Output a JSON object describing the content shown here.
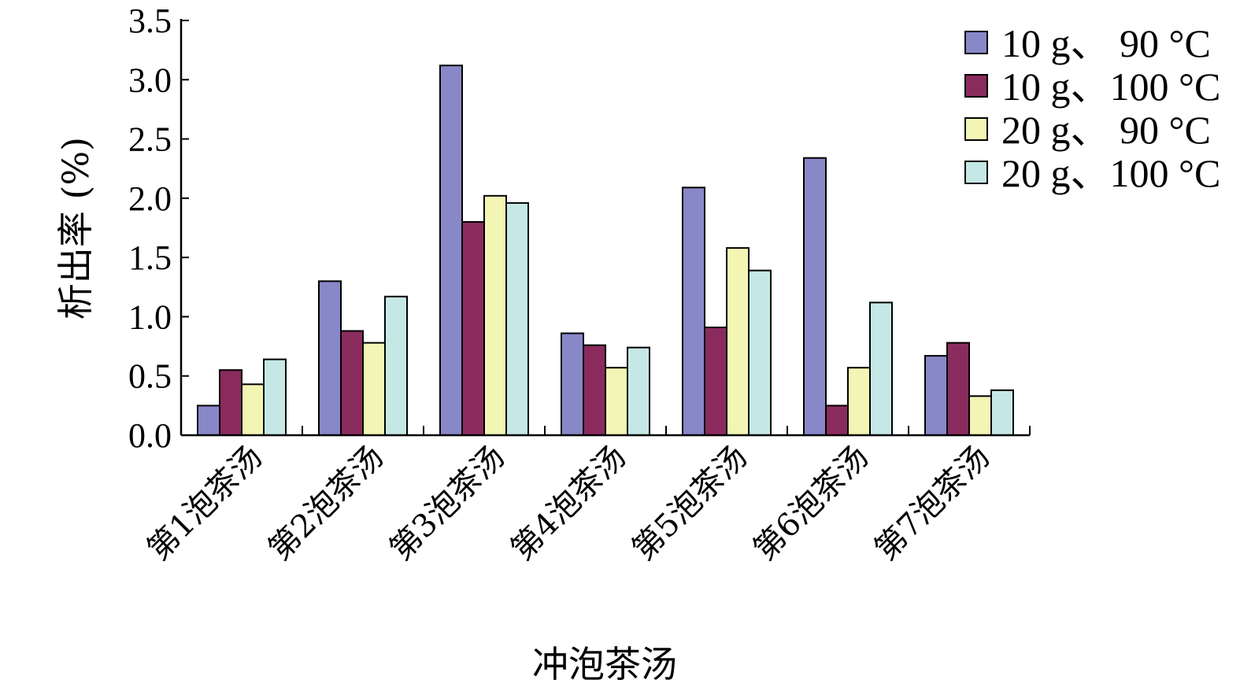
{
  "chart_data": {
    "type": "bar",
    "title": "",
    "xlabel": "冲泡茶汤",
    "ylabel": "析出率 (%)",
    "ylim": [
      0,
      3.5
    ],
    "yticks": [
      "0.0",
      "0.5",
      "1.0",
      "1.5",
      "2.0",
      "2.5",
      "3.0",
      "3.5"
    ],
    "categories": [
      "第1泡茶汤",
      "第2泡茶汤",
      "第3泡茶汤",
      "第4泡茶汤",
      "第5泡茶汤",
      "第6泡茶汤",
      "第7泡茶汤"
    ],
    "legend_position": "top-right",
    "grid": false,
    "series": [
      {
        "name": "10 g、 90 °C",
        "color": "#8888c8",
        "values": [
          0.25,
          1.3,
          3.12,
          0.86,
          2.09,
          2.34,
          0.67
        ]
      },
      {
        "name": "10 g、100 °C",
        "color": "#8a2b5e",
        "values": [
          0.55,
          0.88,
          1.8,
          0.76,
          0.91,
          0.25,
          0.78
        ]
      },
      {
        "name": "20 g、 90 °C",
        "color": "#f2f5b4",
        "values": [
          0.43,
          0.78,
          2.02,
          0.57,
          1.58,
          0.57,
          0.33
        ]
      },
      {
        "name": "20 g、100 °C",
        "color": "#c5e8e6",
        "values": [
          0.64,
          1.17,
          1.96,
          0.74,
          1.39,
          1.12,
          0.38
        ]
      }
    ]
  }
}
